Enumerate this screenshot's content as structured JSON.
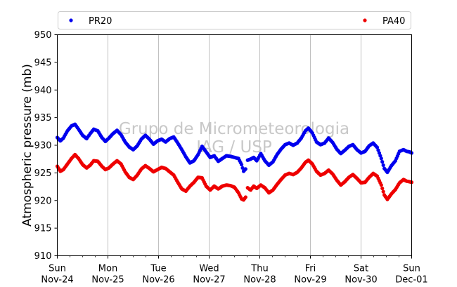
{
  "chart_data": {
    "type": "scatter",
    "ylabel": "Atmospheric pressure (mb)",
    "ylim": [
      910,
      950
    ],
    "yticks": [
      910,
      915,
      920,
      925,
      930,
      935,
      940,
      945,
      950
    ],
    "xlim": [
      0,
      7
    ],
    "x_unit": "days from 2024-11-24 00:00",
    "xticks": [
      {
        "day": "Sun",
        "date": "Nov-24"
      },
      {
        "day": "Mon",
        "date": "Nov-25"
      },
      {
        "day": "Tue",
        "date": "Nov-26"
      },
      {
        "day": "Wed",
        "date": "Nov-27"
      },
      {
        "day": "Thu",
        "date": "Nov-28"
      },
      {
        "day": "Fri",
        "date": "Nov-29"
      },
      {
        "day": "Sat",
        "date": "Nov-30"
      },
      {
        "day": "Sun",
        "date": "Dec-01"
      }
    ],
    "grid": "vertical",
    "legend_position": "top",
    "watermark": [
      "Grupo de Micrometeorologia",
      "IAG / USP"
    ],
    "series": [
      {
        "name": "PR20",
        "color": "#0000ee",
        "gaps_after": [
          3.72
        ],
        "points": [
          [
            0,
            931.4
          ],
          [
            0.06,
            930.8
          ],
          [
            0.12,
            931.3
          ],
          [
            0.2,
            932.6
          ],
          [
            0.28,
            933.5
          ],
          [
            0.35,
            933.8
          ],
          [
            0.42,
            932.9
          ],
          [
            0.5,
            931.8
          ],
          [
            0.58,
            931.2
          ],
          [
            0.65,
            932.1
          ],
          [
            0.72,
            932.9
          ],
          [
            0.8,
            932.6
          ],
          [
            0.88,
            931.4
          ],
          [
            0.95,
            930.7
          ],
          [
            1.02,
            931.3
          ],
          [
            1.1,
            932.1
          ],
          [
            1.18,
            932.7
          ],
          [
            1.26,
            931.9
          ],
          [
            1.34,
            930.6
          ],
          [
            1.42,
            929.7
          ],
          [
            1.5,
            929.2
          ],
          [
            1.58,
            929.9
          ],
          [
            1.66,
            931.1
          ],
          [
            1.74,
            931.8
          ],
          [
            1.82,
            931.1
          ],
          [
            1.9,
            930.2
          ],
          [
            1.98,
            930.8
          ],
          [
            2.06,
            931.1
          ],
          [
            2.14,
            930.6
          ],
          [
            2.22,
            931.2
          ],
          [
            2.3,
            931.5
          ],
          [
            2.38,
            930.4
          ],
          [
            2.46,
            929.2
          ],
          [
            2.54,
            927.9
          ],
          [
            2.62,
            926.8
          ],
          [
            2.7,
            927.2
          ],
          [
            2.78,
            928.3
          ],
          [
            2.86,
            929.8
          ],
          [
            2.94,
            928.8
          ],
          [
            3.02,
            927.8
          ],
          [
            3.1,
            928.1
          ],
          [
            3.18,
            927.1
          ],
          [
            3.26,
            927.6
          ],
          [
            3.34,
            928.1
          ],
          [
            3.42,
            928.0
          ],
          [
            3.5,
            927.8
          ],
          [
            3.58,
            927.6
          ],
          [
            3.64,
            926.5
          ],
          [
            3.68,
            925.3
          ],
          [
            3.72,
            925.7
          ],
          [
            3.76,
            927.3
          ],
          [
            3.82,
            927.5
          ],
          [
            3.88,
            927.8
          ],
          [
            3.94,
            927.2
          ],
          [
            4.02,
            928.5
          ],
          [
            4.1,
            927.2
          ],
          [
            4.18,
            926.4
          ],
          [
            4.26,
            927.0
          ],
          [
            4.34,
            928.3
          ],
          [
            4.42,
            929.3
          ],
          [
            4.5,
            930.1
          ],
          [
            4.58,
            930.4
          ],
          [
            4.66,
            930.0
          ],
          [
            4.74,
            930.4
          ],
          [
            4.82,
            931.3
          ],
          [
            4.9,
            932.6
          ],
          [
            4.96,
            933.1
          ],
          [
            5.04,
            932.2
          ],
          [
            5.12,
            930.6
          ],
          [
            5.2,
            930.1
          ],
          [
            5.28,
            930.4
          ],
          [
            5.36,
            931.3
          ],
          [
            5.44,
            930.5
          ],
          [
            5.52,
            929.3
          ],
          [
            5.6,
            928.5
          ],
          [
            5.68,
            929.1
          ],
          [
            5.76,
            929.8
          ],
          [
            5.84,
            930.1
          ],
          [
            5.92,
            929.2
          ],
          [
            6.0,
            928.6
          ],
          [
            6.08,
            928.9
          ],
          [
            6.16,
            929.9
          ],
          [
            6.24,
            930.4
          ],
          [
            6.32,
            929.6
          ],
          [
            6.4,
            927.6
          ],
          [
            6.46,
            925.8
          ],
          [
            6.52,
            925.1
          ],
          [
            6.6,
            926.3
          ],
          [
            6.68,
            927.2
          ],
          [
            6.76,
            928.9
          ],
          [
            6.84,
            929.2
          ],
          [
            6.9,
            928.9
          ],
          [
            6.96,
            928.8
          ],
          [
            7.0,
            928.6
          ]
        ]
      },
      {
        "name": "PA40",
        "color": "#ee0000",
        "gaps_after": [
          3.72
        ],
        "points": [
          [
            0,
            926.2
          ],
          [
            0.06,
            925.3
          ],
          [
            0.12,
            925.6
          ],
          [
            0.2,
            926.6
          ],
          [
            0.28,
            927.6
          ],
          [
            0.35,
            928.3
          ],
          [
            0.42,
            927.6
          ],
          [
            0.5,
            926.5
          ],
          [
            0.58,
            925.9
          ],
          [
            0.65,
            926.4
          ],
          [
            0.72,
            927.2
          ],
          [
            0.8,
            927.1
          ],
          [
            0.88,
            926.2
          ],
          [
            0.95,
            925.6
          ],
          [
            1.02,
            925.9
          ],
          [
            1.1,
            926.6
          ],
          [
            1.18,
            927.2
          ],
          [
            1.26,
            926.6
          ],
          [
            1.34,
            925.2
          ],
          [
            1.42,
            924.2
          ],
          [
            1.5,
            923.8
          ],
          [
            1.58,
            924.6
          ],
          [
            1.66,
            925.7
          ],
          [
            1.74,
            926.3
          ],
          [
            1.82,
            925.8
          ],
          [
            1.9,
            925.2
          ],
          [
            1.98,
            925.6
          ],
          [
            2.06,
            926.0
          ],
          [
            2.14,
            925.8
          ],
          [
            2.22,
            925.2
          ],
          [
            2.3,
            924.6
          ],
          [
            2.38,
            923.3
          ],
          [
            2.46,
            922.1
          ],
          [
            2.54,
            921.7
          ],
          [
            2.62,
            922.6
          ],
          [
            2.7,
            923.3
          ],
          [
            2.78,
            924.2
          ],
          [
            2.86,
            924.1
          ],
          [
            2.94,
            922.6
          ],
          [
            3.02,
            921.9
          ],
          [
            3.1,
            922.6
          ],
          [
            3.18,
            922.1
          ],
          [
            3.26,
            922.6
          ],
          [
            3.34,
            922.8
          ],
          [
            3.42,
            922.7
          ],
          [
            3.5,
            922.4
          ],
          [
            3.58,
            921.4
          ],
          [
            3.64,
            920.3
          ],
          [
            3.68,
            920.1
          ],
          [
            3.72,
            920.6
          ],
          [
            3.76,
            922.3
          ],
          [
            3.82,
            921.9
          ],
          [
            3.88,
            922.6
          ],
          [
            3.94,
            922.2
          ],
          [
            4.02,
            922.8
          ],
          [
            4.1,
            922.3
          ],
          [
            4.18,
            921.4
          ],
          [
            4.26,
            921.9
          ],
          [
            4.34,
            922.9
          ],
          [
            4.42,
            923.8
          ],
          [
            4.5,
            924.6
          ],
          [
            4.58,
            924.9
          ],
          [
            4.66,
            924.7
          ],
          [
            4.74,
            925.1
          ],
          [
            4.82,
            925.9
          ],
          [
            4.9,
            926.9
          ],
          [
            4.96,
            927.3
          ],
          [
            5.04,
            926.6
          ],
          [
            5.12,
            925.3
          ],
          [
            5.2,
            924.6
          ],
          [
            5.28,
            924.9
          ],
          [
            5.36,
            925.5
          ],
          [
            5.44,
            924.8
          ],
          [
            5.52,
            923.7
          ],
          [
            5.6,
            922.8
          ],
          [
            5.68,
            923.4
          ],
          [
            5.76,
            924.2
          ],
          [
            5.84,
            924.7
          ],
          [
            5.92,
            924.0
          ],
          [
            6.0,
            923.2
          ],
          [
            6.08,
            923.3
          ],
          [
            6.16,
            924.2
          ],
          [
            6.24,
            924.9
          ],
          [
            6.32,
            924.4
          ],
          [
            6.4,
            922.8
          ],
          [
            6.46,
            921.0
          ],
          [
            6.52,
            920.2
          ],
          [
            6.6,
            921.2
          ],
          [
            6.68,
            922.0
          ],
          [
            6.76,
            923.2
          ],
          [
            6.84,
            923.8
          ],
          [
            6.9,
            923.5
          ],
          [
            6.96,
            923.4
          ],
          [
            7.0,
            923.3
          ]
        ]
      }
    ]
  }
}
